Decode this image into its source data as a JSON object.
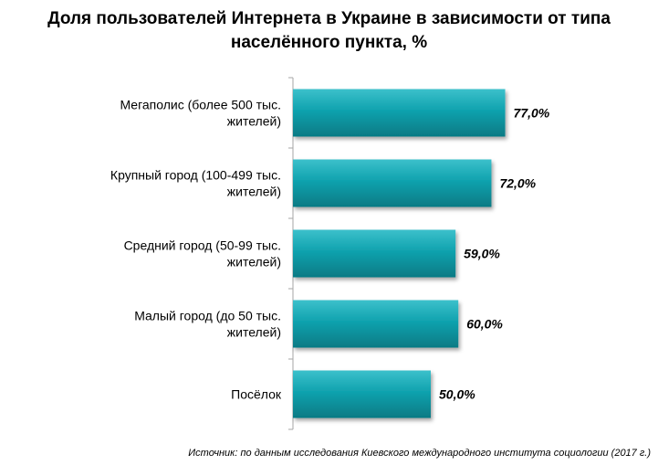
{
  "chart_data": {
    "type": "bar",
    "orientation": "horizontal",
    "title_lines": [
      "Доля пользователей Интернета в Украине в зависимости от типа",
      "населённого пункта, %"
    ],
    "categories": [
      [
        "Мегаполис  (более 500 тыс.",
        "жителей)"
      ],
      [
        "Крупный   город (100-499 тыс.",
        "жителей)"
      ],
      [
        "Средний  город (50-99 тыс.",
        "жителей)"
      ],
      [
        "Малый город (до 50 тыс.",
        "жителей)"
      ],
      [
        "Посёлок"
      ]
    ],
    "values": [
      77.0,
      72.0,
      59.0,
      60.0,
      50.0
    ],
    "value_labels": [
      "77,0%",
      "72,0%",
      "59,0%",
      "60,0%",
      "50,0%"
    ],
    "unit": "%",
    "xlim": [
      0,
      100
    ],
    "grid": false,
    "legend": "none",
    "bar_color": "#0d9aa6",
    "axis_color": "#a6a6a6"
  },
  "source_note": "Источник: по данным исследования Киевского международного института социологии (2017 г.)"
}
